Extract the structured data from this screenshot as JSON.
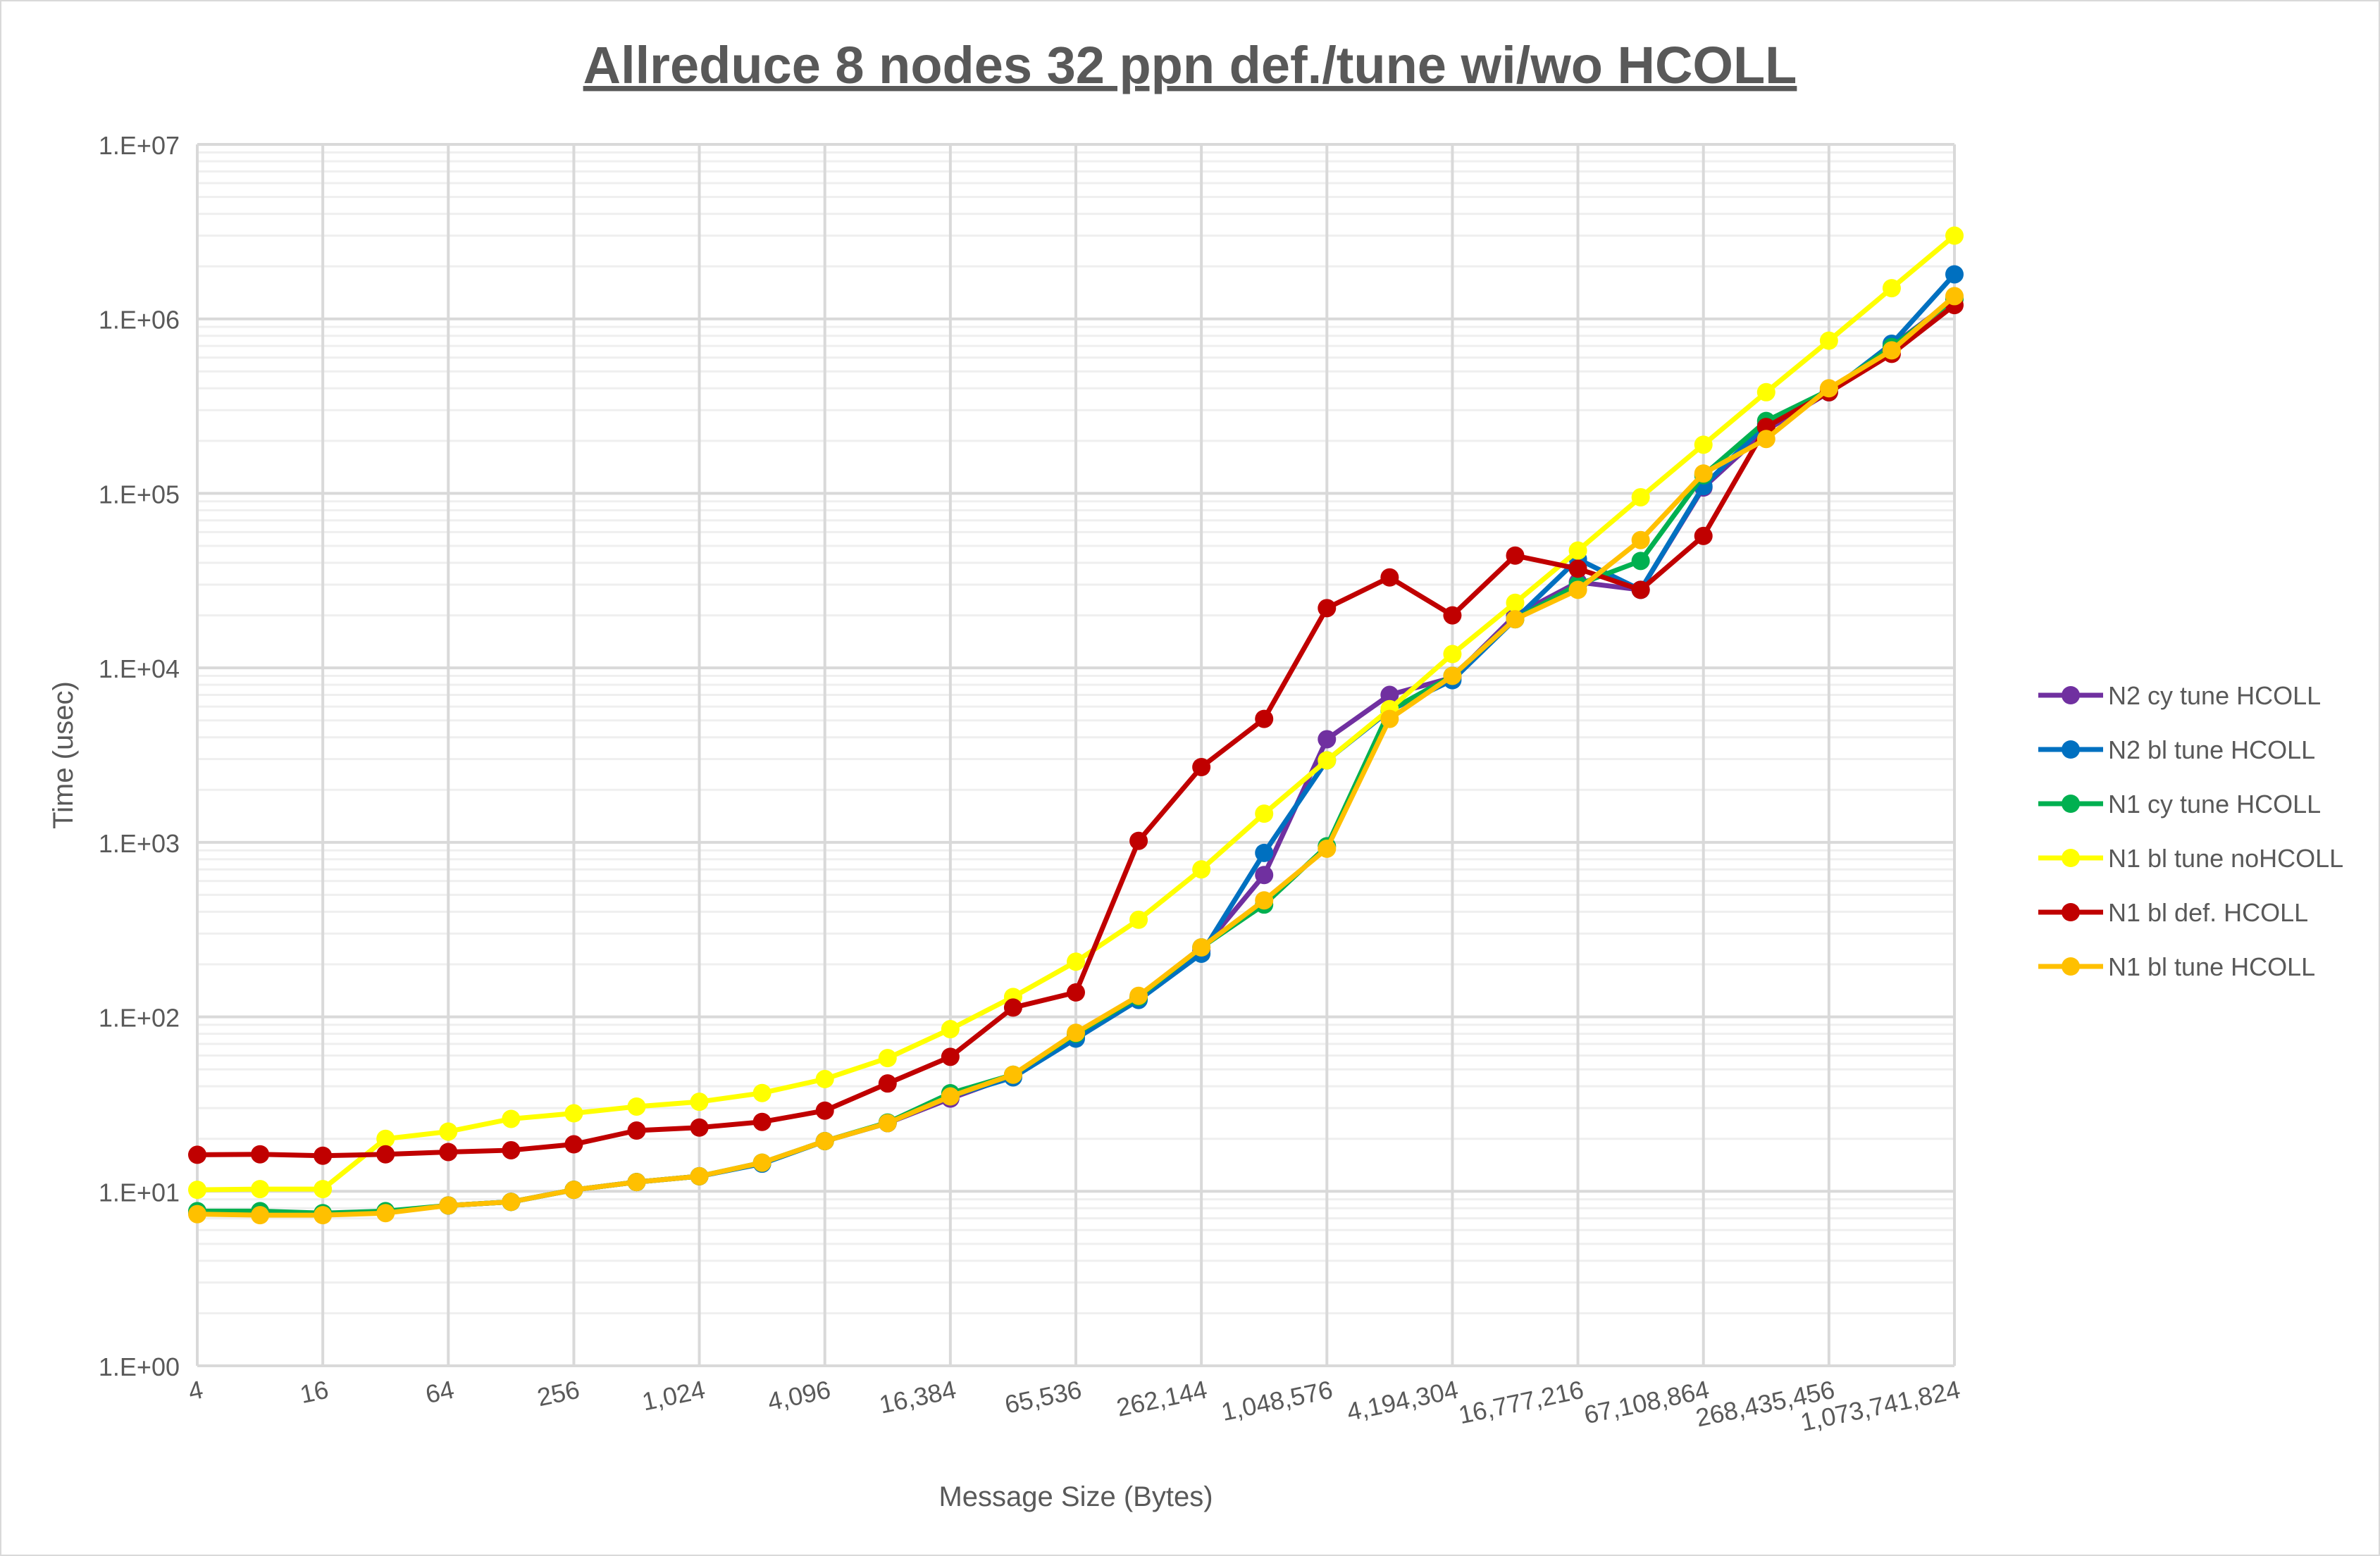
{
  "chart_data": {
    "type": "line",
    "title": "Allreduce 8 nodes 32 ppn def./tune wi/wo HCOLL",
    "xlabel": "Message Size (Bytes)",
    "ylabel": "Time (usec)",
    "y_scale": "log",
    "ylim": [
      1,
      10000000
    ],
    "y_ticks": [
      "1.E+00",
      "1.E+01",
      "1.E+02",
      "1.E+03",
      "1.E+04",
      "1.E+05",
      "1.E+06",
      "1.E+07"
    ],
    "x": [
      4,
      8,
      16,
      32,
      64,
      128,
      256,
      512,
      1024,
      2048,
      4096,
      8192,
      16384,
      32768,
      65536,
      131072,
      262144,
      524288,
      1048576,
      2097152,
      4194304,
      8388608,
      16777216,
      33554432,
      67108864,
      134217728,
      268435456,
      536870912,
      1073741824
    ],
    "x_tick_labels": [
      "4",
      "16",
      "64",
      "256",
      "1,024",
      "4,096",
      "16,384",
      "65,536",
      "262,144",
      "1,048,576",
      "4,194,304",
      "16,777,216",
      "67,108,864",
      "268,435,456",
      "1,073,741,824"
    ],
    "grid": true,
    "legend_position": "right",
    "series": [
      {
        "name": "N2 cy tune HCOLL",
        "color": "#7030A0",
        "values": [
          7.6,
          7.5,
          7.4,
          7.6,
          8.3,
          8.7,
          10.2,
          11.3,
          12.2,
          14.5,
          19.4,
          24.6,
          34,
          46,
          78,
          128,
          240,
          650,
          3900,
          7000,
          8800,
          20000,
          31000,
          28000,
          108000,
          230000,
          380000,
          700000,
          1300000
        ]
      },
      {
        "name": "N2 bl tune HCOLL",
        "color": "#0070C0",
        "values": [
          7.6,
          7.5,
          7.4,
          7.6,
          8.3,
          8.7,
          10.2,
          11.3,
          12.2,
          14.4,
          19.4,
          24.6,
          35,
          45,
          75,
          125,
          230,
          870,
          2950,
          5700,
          8500,
          19000,
          42000,
          28000,
          110000,
          250000,
          380000,
          720000,
          1800000
        ]
      },
      {
        "name": "N1 cy tune HCOLL",
        "color": "#00B050",
        "values": [
          7.7,
          7.7,
          7.5,
          7.7,
          8.3,
          8.7,
          10.2,
          11.3,
          12.2,
          14.6,
          19.4,
          24.8,
          36.5,
          46.6,
          80,
          130,
          250,
          440,
          950,
          5700,
          9000,
          19000,
          30000,
          41000,
          127000,
          260000,
          390000,
          690000,
          1300000
        ]
      },
      {
        "name": "N1 bl tune noHCOLL",
        "color": "#FFFF00",
        "values": [
          10.2,
          10.3,
          10.3,
          20,
          22,
          26,
          28,
          30.6,
          32.6,
          36.6,
          44,
          58,
          85,
          130,
          207,
          360,
          700,
          1460,
          2950,
          5800,
          12000,
          23600,
          47000,
          95000,
          190000,
          380000,
          750000,
          1500000,
          3000000
        ]
      },
      {
        "name": "N1 bl def. HCOLL",
        "color": "#C00000",
        "values": [
          16.2,
          16.3,
          16,
          16.3,
          16.8,
          17.2,
          18.6,
          22.3,
          23.2,
          25,
          29,
          41.5,
          59,
          113,
          138,
          1020,
          2700,
          5100,
          22000,
          33000,
          20000,
          44000,
          37000,
          28000,
          57000,
          240000,
          380000,
          630000,
          1200000
        ]
      },
      {
        "name": "N1 bl tune HCOLL",
        "color": "#FFC000",
        "values": [
          7.4,
          7.3,
          7.3,
          7.5,
          8.3,
          8.7,
          10.2,
          11.3,
          12.2,
          14.6,
          19.4,
          24.6,
          35,
          46.6,
          81,
          132,
          250,
          465,
          920,
          5100,
          9000,
          19000,
          28000,
          54000,
          130000,
          205000,
          400000,
          660000,
          1350000
        ]
      }
    ]
  }
}
